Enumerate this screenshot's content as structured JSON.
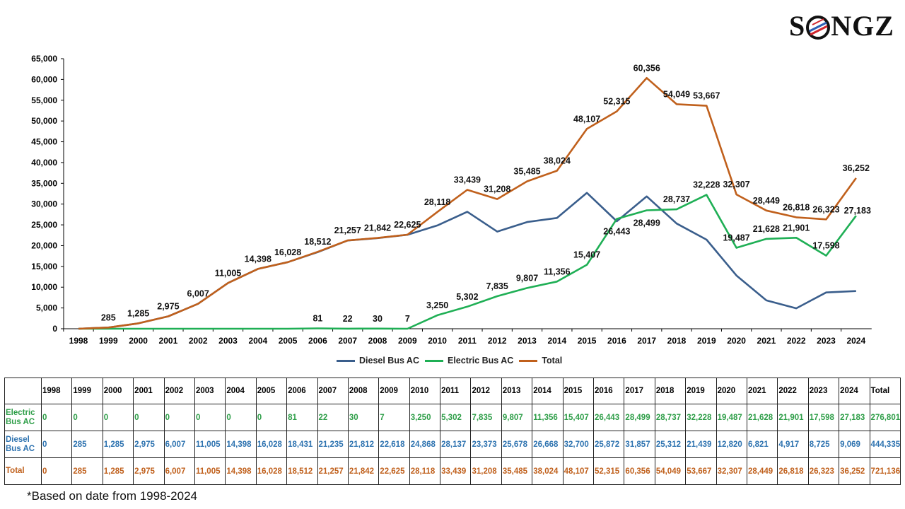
{
  "logo": {
    "text_before": "S",
    "text_after": "NGZ",
    "full": "SONGZ"
  },
  "colors": {
    "diesel": "#3A5E8C",
    "electric": "#1FAF55",
    "total": "#C0601C",
    "axis": "#000000",
    "table_electric": "#2E9E48",
    "table_diesel": "#2E73B0",
    "table_total": "#C0601C"
  },
  "chart_data": {
    "type": "line",
    "categories": [
      "1998",
      "1999",
      "2000",
      "2001",
      "2002",
      "2003",
      "2004",
      "2005",
      "2006",
      "2007",
      "2008",
      "2009",
      "2010",
      "2011",
      "2012",
      "2013",
      "2014",
      "2015",
      "2016",
      "2017",
      "2018",
      "2019",
      "2020",
      "2021",
      "2022",
      "2023",
      "2024"
    ],
    "series": [
      {
        "name": "Diesel Bus AC",
        "color": "#3A5E8C",
        "values": [
          0,
          285,
          1285,
          2975,
          6007,
          11005,
          14398,
          16028,
          18431,
          21235,
          21812,
          22618,
          24868,
          28137,
          23373,
          25678,
          26668,
          32700,
          25872,
          31857,
          25312,
          21439,
          12820,
          6821,
          4917,
          8725,
          9069
        ],
        "labels": []
      },
      {
        "name": "Electric Bus AC",
        "color": "#1FAF55",
        "values": [
          0,
          0,
          0,
          0,
          0,
          0,
          0,
          0,
          81,
          22,
          30,
          7,
          3250,
          5302,
          7835,
          9807,
          11356,
          15407,
          26443,
          28499,
          28737,
          32228,
          19487,
          21628,
          21901,
          17598,
          27183
        ],
        "labels": [
          "",
          "",
          "",
          "",
          "",
          "",
          "",
          "",
          "81",
          "22",
          "30",
          "7",
          "3,250",
          "5,302",
          "7,835",
          "9,807",
          "11,356",
          "15,407",
          "26,443",
          "28,499",
          "28,737",
          "32,228",
          "19,487",
          "21,628",
          "21,901",
          "17,598",
          "27,183"
        ]
      },
      {
        "name": "Total",
        "color": "#C0601C",
        "values": [
          0,
          285,
          1285,
          2975,
          6007,
          11005,
          14398,
          16028,
          18512,
          21257,
          21842,
          22625,
          28118,
          33439,
          31208,
          35485,
          38024,
          48107,
          52315,
          60356,
          54049,
          53667,
          32307,
          28449,
          26818,
          26323,
          36252
        ],
        "labels": [
          "",
          "285",
          "1,285",
          "2,975",
          "6,007",
          "11,005",
          "14,398",
          "16,028",
          "18,512",
          "21,257",
          "21,842",
          "22,625",
          "28,118",
          "33,439",
          "31,208",
          "35,485",
          "38,024",
          "48,107",
          "52,315",
          "60,356",
          "54,049",
          "53,667",
          "32,307",
          "28,449",
          "26,818",
          "26,323",
          "36,252"
        ]
      }
    ],
    "ylim": [
      0,
      65000
    ],
    "yticks": [
      "0",
      "5,000",
      "10,000",
      "15,000",
      "20,000",
      "25,000",
      "30,000",
      "35,000",
      "40,000",
      "45,000",
      "50,000",
      "55,000",
      "60,000",
      "65,000"
    ],
    "title": "",
    "xlabel": "",
    "ylabel": "",
    "grid": false,
    "legend_position": "bottom-center"
  },
  "legend": [
    "Diesel Bus AC",
    "Electric Bus AC",
    "Total"
  ],
  "table": {
    "header": [
      "",
      "1998",
      "1999",
      "2000",
      "2001",
      "2002",
      "2003",
      "2004",
      "2005",
      "2006",
      "2007",
      "2008",
      "2009",
      "2010",
      "2011",
      "2012",
      "2013",
      "2014",
      "2015",
      "2016",
      "2017",
      "2018",
      "2019",
      "2020",
      "2021",
      "2022",
      "2023",
      "2024",
      "Total"
    ],
    "rows": [
      {
        "key": "electric",
        "label": "Electric Bus AC",
        "cells": [
          "0",
          "0",
          "0",
          "0",
          "0",
          "0",
          "0",
          "0",
          "81",
          "22",
          "30",
          "7",
          "3,250",
          "5,302",
          "7,835",
          "9,807",
          "11,356",
          "15,407",
          "26,443",
          "28,499",
          "28,737",
          "32,228",
          "19,487",
          "21,628",
          "21,901",
          "17,598",
          "27,183",
          "276,801"
        ]
      },
      {
        "key": "diesel",
        "label": "Diesel Bus AC",
        "cells": [
          "0",
          "285",
          "1,285",
          "2,975",
          "6,007",
          "11,005",
          "14,398",
          "16,028",
          "18,431",
          "21,235",
          "21,812",
          "22,618",
          "24,868",
          "28,137",
          "23,373",
          "25,678",
          "26,668",
          "32,700",
          "25,872",
          "31,857",
          "25,312",
          "21,439",
          "12,820",
          "6,821",
          "4,917",
          "8,725",
          "9,069",
          "444,335"
        ]
      },
      {
        "key": "total",
        "label": "Total",
        "cells": [
          "0",
          "285",
          "1,285",
          "2,975",
          "6,007",
          "11,005",
          "14,398",
          "16,028",
          "18,512",
          "21,257",
          "21,842",
          "22,625",
          "28,118",
          "33,439",
          "31,208",
          "35,485",
          "38,024",
          "48,107",
          "52,315",
          "60,356",
          "54,049",
          "53,667",
          "32,307",
          "28,449",
          "26,818",
          "26,323",
          "36,252",
          "721,136"
        ]
      }
    ]
  },
  "footnote": "*Based on date from 1998-2024"
}
